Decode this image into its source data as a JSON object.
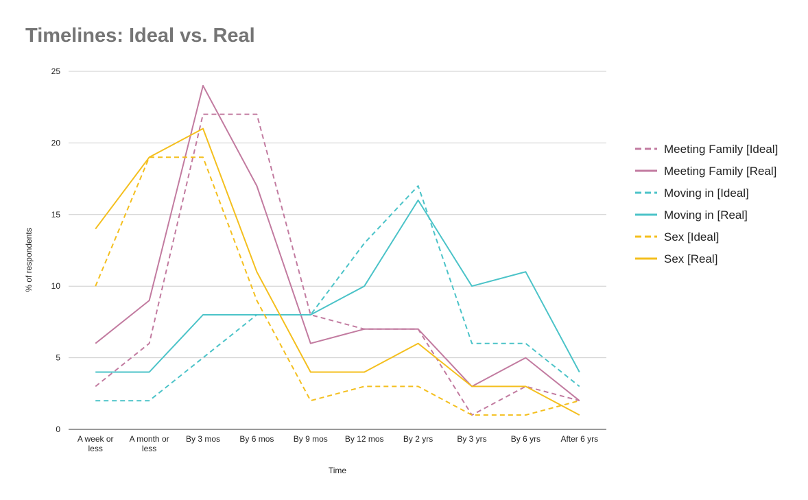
{
  "chart_data": {
    "type": "line",
    "title": "Timelines: Ideal vs. Real",
    "xlabel": "Time",
    "ylabel": "% of respondents",
    "categories": [
      [
        "A week or",
        "less"
      ],
      [
        "A month or",
        "less"
      ],
      [
        "By 3 mos"
      ],
      [
        "By 6 mos"
      ],
      [
        "By 9 mos"
      ],
      [
        "By 12 mos"
      ],
      [
        "By 2 yrs"
      ],
      [
        "By 3 yrs"
      ],
      [
        "By 6 yrs"
      ],
      [
        "After 6 yrs"
      ]
    ],
    "ylim": [
      0,
      25
    ],
    "yticks": [
      "0",
      "5",
      "10",
      "15",
      "20",
      "25"
    ],
    "grid": true,
    "legend_position": "right",
    "series": [
      {
        "name": "Meeting Family [Ideal]",
        "color": "#c27ba0",
        "dashed": true,
        "values": [
          3,
          6,
          22,
          22,
          8,
          7,
          7,
          1,
          3,
          2
        ]
      },
      {
        "name": "Meeting Family [Real]",
        "color": "#c27ba0",
        "dashed": false,
        "values": [
          6,
          9,
          24,
          17,
          6,
          7,
          7,
          3,
          5,
          2
        ]
      },
      {
        "name": "Moving in [Ideal]",
        "color": "#4bc3c8",
        "dashed": true,
        "values": [
          2,
          2,
          5,
          8,
          8,
          13,
          17,
          6,
          6,
          3
        ]
      },
      {
        "name": "Moving in [Real]",
        "color": "#4bc3c8",
        "dashed": false,
        "values": [
          4,
          4,
          8,
          8,
          8,
          10,
          16,
          10,
          11,
          4
        ]
      },
      {
        "name": "Sex [Ideal]",
        "color": "#f4bf1e",
        "dashed": true,
        "values": [
          10,
          19,
          19,
          9,
          2,
          3,
          3,
          1,
          1,
          2
        ]
      },
      {
        "name": "Sex [Real]",
        "color": "#f4bf1e",
        "dashed": false,
        "values": [
          14,
          19,
          21,
          11,
          4,
          4,
          6,
          3,
          3,
          1
        ]
      }
    ]
  }
}
